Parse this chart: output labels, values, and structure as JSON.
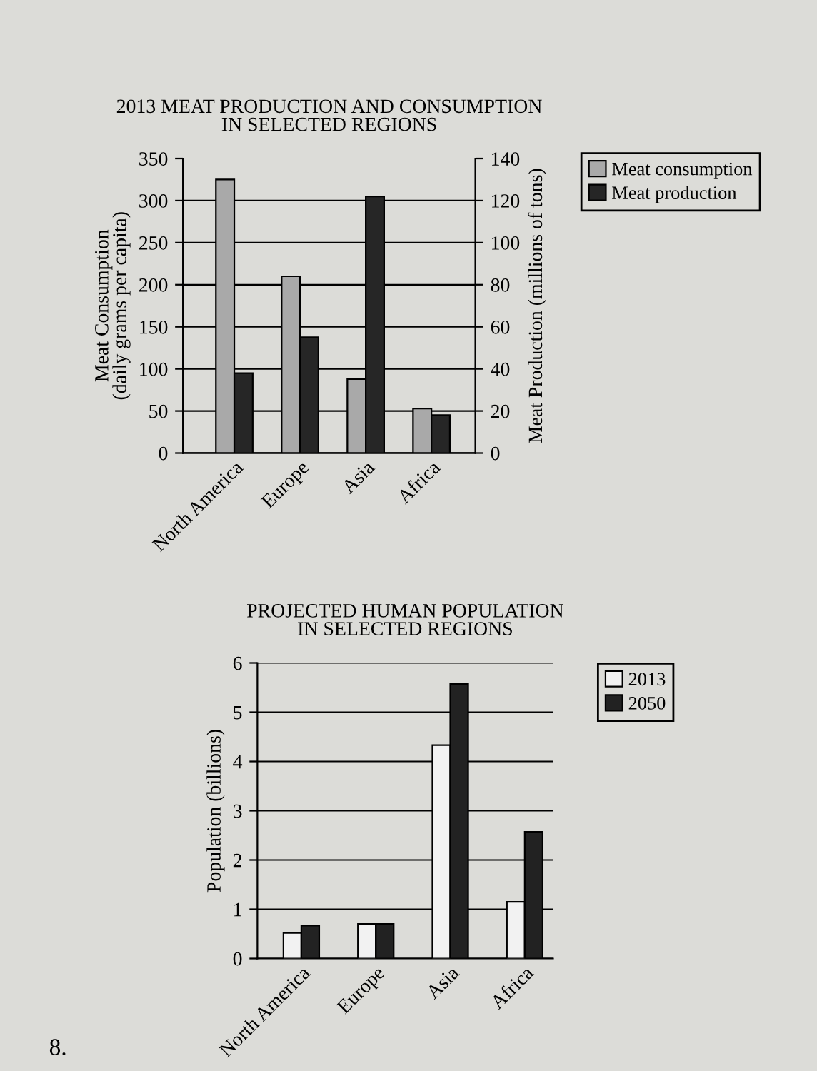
{
  "chart_data": [
    {
      "type": "bar",
      "title": "2013 MEAT PRODUCTION AND CONSUMPTION\nIN SELECTED REGIONS",
      "categories": [
        "North America",
        "Europe",
        "Asia",
        "Africa"
      ],
      "ylabel": "Meat Consumption\n(daily grams per capita)",
      "y2label": "Meat Production (millions of tons)",
      "series": [
        {
          "name": "Meat consumption",
          "color": "#a9a9a9",
          "values": [
            325,
            210,
            88,
            53
          ]
        },
        {
          "name": "Meat production",
          "color": "#262626",
          "values": [
            38,
            55,
            122,
            18
          ],
          "axis": "y2"
        }
      ],
      "ylim": [
        0,
        350
      ],
      "yticks": [
        0,
        50,
        100,
        150,
        200,
        250,
        300,
        350
      ],
      "y2lim": [
        0,
        140
      ],
      "y2ticks": [
        0,
        20,
        40,
        60,
        80,
        100,
        120,
        140
      ],
      "grid": "y",
      "legend": "top right"
    },
    {
      "type": "bar",
      "title": "PROJECTED HUMAN POPULATION\nIN SELECTED REGIONS",
      "categories": [
        "North America",
        "Europe",
        "Asia",
        "Africa"
      ],
      "ylabel": "Population (billions)",
      "series": [
        {
          "name": "2013",
          "color": "#f2f2f2",
          "values": [
            0.52,
            0.7,
            4.33,
            1.15
          ]
        },
        {
          "name": "2050",
          "color": "#222222",
          "values": [
            0.67,
            0.7,
            5.57,
            2.57
          ]
        }
      ],
      "ylim": [
        0,
        6
      ],
      "yticks": [
        0,
        1,
        2,
        3,
        4,
        5,
        6
      ],
      "grid": "y",
      "legend": "top right",
      "annotations": [
        "8."
      ]
    }
  ]
}
